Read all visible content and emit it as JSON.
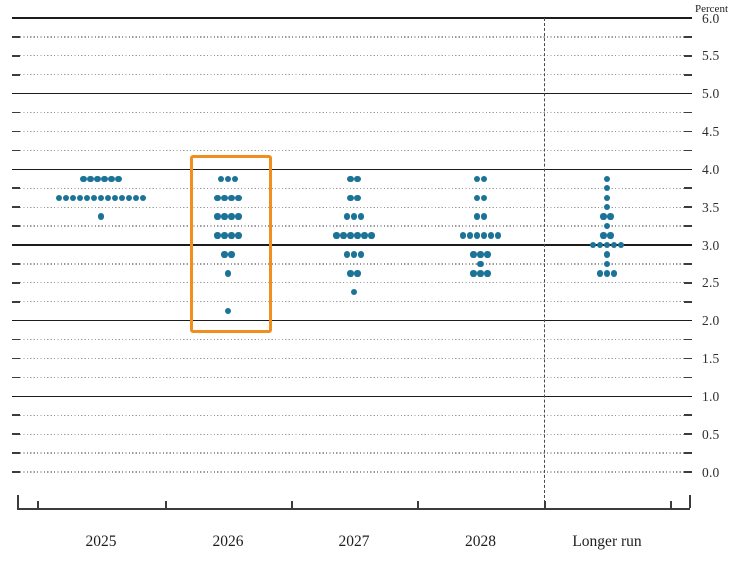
{
  "chart_data": {
    "type": "scatter",
    "title": "",
    "unit_label": "Percent",
    "legend_position": "none",
    "grid": "on",
    "y_axis": {
      "min": 0.0,
      "max": 6.0,
      "grid_step": 0.25,
      "label_step": 0.5,
      "solid_line_values": [
        6.0,
        5.0,
        4.0,
        3.0,
        2.0,
        1.0
      ],
      "tick_labels": [
        "6.0",
        "5.5",
        "5.0",
        "4.5",
        "4.0",
        "3.5",
        "3.0",
        "2.5",
        "2.0",
        "1.5",
        "1.0",
        "0.5",
        "0.0"
      ]
    },
    "categories": [
      "2025",
      "2026",
      "2027",
      "2028",
      "Longer run"
    ],
    "separator_before_category": "Longer run",
    "dot_color": "#1C7398",
    "highlight": {
      "category": "2026",
      "color": "#F28E1E"
    },
    "series": [
      {
        "category": "2025",
        "dots": [
          {
            "value": 3.875,
            "count": 6
          },
          {
            "value": 3.625,
            "count": 13
          },
          {
            "value": 3.375,
            "count": 1
          }
        ]
      },
      {
        "category": "2026",
        "dots": [
          {
            "value": 3.875,
            "count": 3
          },
          {
            "value": 3.625,
            "count": 4
          },
          {
            "value": 3.375,
            "count": 4
          },
          {
            "value": 3.125,
            "count": 4
          },
          {
            "value": 2.875,
            "count": 2
          },
          {
            "value": 2.625,
            "count": 1
          },
          {
            "value": 2.125,
            "count": 1
          }
        ]
      },
      {
        "category": "2027",
        "dots": [
          {
            "value": 3.875,
            "count": 2
          },
          {
            "value": 3.625,
            "count": 2
          },
          {
            "value": 3.375,
            "count": 3
          },
          {
            "value": 3.125,
            "count": 6
          },
          {
            "value": 2.875,
            "count": 3
          },
          {
            "value": 2.625,
            "count": 2
          },
          {
            "value": 2.375,
            "count": 1
          }
        ]
      },
      {
        "category": "2028",
        "dots": [
          {
            "value": 3.875,
            "count": 2
          },
          {
            "value": 3.625,
            "count": 2
          },
          {
            "value": 3.375,
            "count": 2
          },
          {
            "value": 3.125,
            "count": 6
          },
          {
            "value": 2.875,
            "count": 3
          },
          {
            "value": 2.75,
            "count": 1
          },
          {
            "value": 2.625,
            "count": 3
          }
        ]
      },
      {
        "category": "Longer run",
        "dots": [
          {
            "value": 3.875,
            "count": 1
          },
          {
            "value": 3.75,
            "count": 1
          },
          {
            "value": 3.625,
            "count": 1
          },
          {
            "value": 3.5,
            "count": 1
          },
          {
            "value": 3.375,
            "count": 2
          },
          {
            "value": 3.25,
            "count": 1
          },
          {
            "value": 3.125,
            "count": 2
          },
          {
            "value": 3.0,
            "count": 5
          },
          {
            "value": 2.875,
            "count": 1
          },
          {
            "value": 2.75,
            "count": 1
          },
          {
            "value": 2.625,
            "count": 3
          }
        ]
      }
    ]
  }
}
